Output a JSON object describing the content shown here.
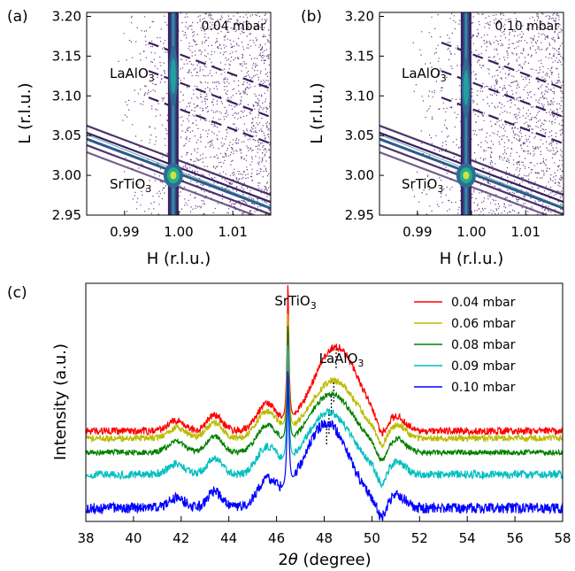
{
  "chart_data": [
    {
      "type": "heatmap",
      "panel_label": "(a)",
      "annotation": "0.04 mbar",
      "xlabel": "H (r.l.u.)",
      "ylabel": "L (r.l.u.)",
      "xlim": [
        0.983,
        1.017
      ],
      "ylim": [
        2.95,
        3.205
      ],
      "xticks": [
        "0.99",
        "1.00",
        "1.01"
      ],
      "yticks": [
        "2.95",
        "3.00",
        "3.05",
        "3.10",
        "3.15",
        "3.20"
      ],
      "peak_labels": [
        {
          "text": "LaAlO",
          "sub": "3",
          "h": 0.9865,
          "l": 3.125
        },
        {
          "text": "SrTiO",
          "sub": "3",
          "h": 0.9865,
          "l": 2.99
        }
      ],
      "peaks": [
        {
          "name": "SrTiO3",
          "h": 0.999,
          "l": 3.0
        },
        {
          "name": "LaAlO3",
          "h": 0.999,
          "l": 3.125
        }
      ]
    },
    {
      "type": "heatmap",
      "panel_label": "(b)",
      "annotation": "0.10 mbar",
      "xlabel": "H (r.l.u.)",
      "ylabel": "L (r.l.u.)",
      "xlim": [
        0.983,
        1.017
      ],
      "ylim": [
        2.95,
        3.205
      ],
      "xticks": [
        "0.99",
        "1.00",
        "1.01"
      ],
      "yticks": [
        "2.95",
        "3.00",
        "3.05",
        "3.10",
        "3.15",
        "3.20"
      ],
      "peak_labels": [
        {
          "text": "LaAlO",
          "sub": "3",
          "h": 0.9865,
          "l": 3.125
        },
        {
          "text": "SrTiO",
          "sub": "3",
          "h": 0.9865,
          "l": 2.99
        }
      ],
      "peaks": [
        {
          "name": "SrTiO3",
          "h": 0.999,
          "l": 3.0
        },
        {
          "name": "LaAlO3",
          "h": 0.999,
          "l": 3.11
        }
      ]
    },
    {
      "type": "line",
      "panel_label": "(c)",
      "xlabel_prefix": "2",
      "xlabel_theta": "θ",
      "xlabel_suffix": " (degree)",
      "ylabel": "Intensity (a.u.)",
      "xlim": [
        38,
        58
      ],
      "xticks": [
        "38",
        "40",
        "42",
        "44",
        "46",
        "48",
        "50",
        "52",
        "54",
        "56",
        "58"
      ],
      "peak_labels": [
        {
          "text": "SrTiO",
          "sub": "3",
          "x": 46.48
        },
        {
          "text": "LaAlO",
          "sub": "3",
          "x": 48.5
        }
      ],
      "series": [
        {
          "name": "0.04 mbar",
          "color": "#ff0000",
          "laao_peak": 48.5
        },
        {
          "name": "0.06 mbar",
          "color": "#bbbb00",
          "laao_peak": 48.4
        },
        {
          "name": "0.08 mbar",
          "color": "#008000",
          "laao_peak": 48.3
        },
        {
          "name": "0.09 mbar",
          "color": "#00bfbf",
          "laao_peak": 48.2
        },
        {
          "name": "0.10 mbar",
          "color": "#0000ff",
          "laao_peak": 48.1
        }
      ]
    }
  ]
}
